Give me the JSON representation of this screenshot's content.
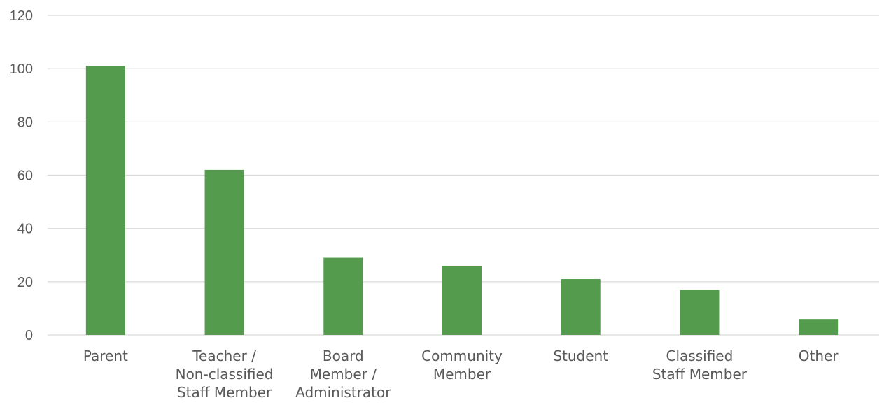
{
  "chart_data": {
    "type": "bar",
    "title": "",
    "xlabel": "",
    "ylabel": "",
    "ylim": [
      0,
      120
    ],
    "yticks": [
      0,
      20,
      40,
      60,
      80,
      100,
      120
    ],
    "grid": true,
    "legend": "none",
    "bar_color": "#549b4e",
    "categories": [
      {
        "label": "Parent",
        "lines": [
          "Parent"
        ]
      },
      {
        "label": "Teacher / Non-classified Staff Member",
        "lines": [
          "Teacher /",
          "Non-classified",
          "Staff Member"
        ]
      },
      {
        "label": "Board Member / Administrator",
        "lines": [
          "Board",
          "Member /",
          "Administrator"
        ]
      },
      {
        "label": "Community Member",
        "lines": [
          "Community",
          "Member"
        ]
      },
      {
        "label": "Student",
        "lines": [
          "Student"
        ]
      },
      {
        "label": "Classified Staff Member",
        "lines": [
          "Classified",
          "Staff Member"
        ]
      },
      {
        "label": "Other",
        "lines": [
          "Other"
        ]
      }
    ],
    "values": [
      101,
      62,
      29,
      26,
      21,
      17,
      6
    ]
  }
}
